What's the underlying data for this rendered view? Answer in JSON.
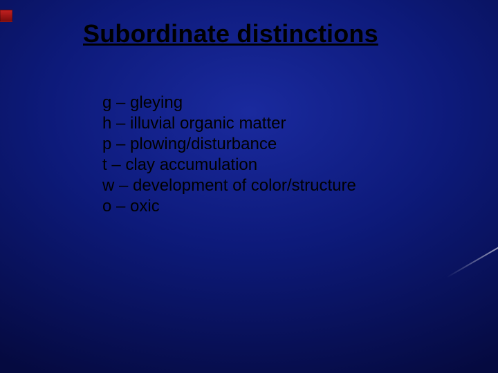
{
  "slide": {
    "background": {
      "gradient_inner_color": "#1a2a9e",
      "gradient_mid_color": "#0d1a7a",
      "gradient_outer_color": "#050a40"
    },
    "bullet_marker": {
      "color_top": "#c22020",
      "color_bottom": "#7a0c0c"
    },
    "title": {
      "text": "Subordinate distinctions",
      "color": "#000000",
      "fontsize": 36,
      "underline": true,
      "weight": "bold"
    },
    "items": [
      {
        "text": "g – gleying"
      },
      {
        "text": "h – illuvial organic matter"
      },
      {
        "text": "p – plowing/disturbance"
      },
      {
        "text": "t – clay accumulation"
      },
      {
        "text": "w – development of color/structure"
      },
      {
        "text": "o – oxic"
      }
    ],
    "body_style": {
      "color": "#000000",
      "fontsize": 24
    }
  }
}
